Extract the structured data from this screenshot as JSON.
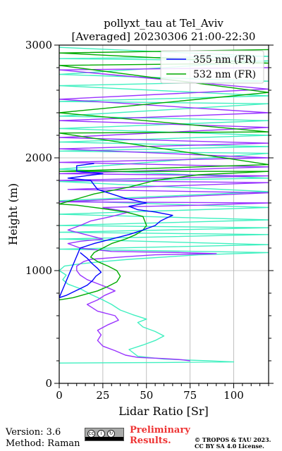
{
  "chart_data": {
    "type": "line",
    "title": "pollyxt_tau at Tel_Aviv",
    "subtitle": "[Averaged] 20230306 21:00-22:30",
    "xlabel": "Lidar Ratio [Sr]",
    "ylabel": "Height (m)",
    "xlim": [
      0,
      120
    ],
    "ylim": [
      0,
      3000
    ],
    "x_ticks": [
      0,
      25,
      50,
      75,
      100
    ],
    "y_ticks": [
      0,
      1000,
      2000,
      3000
    ],
    "grid": true,
    "legend_position": "top-right",
    "series": [
      {
        "name": "355 nm (FR)",
        "color": "#0000ff",
        "points": [
          [
            12,
            1160
          ],
          [
            16,
            1110
          ],
          [
            19,
            1060
          ],
          [
            22,
            1020
          ],
          [
            24,
            985
          ],
          [
            21,
            950
          ],
          [
            19,
            910
          ],
          [
            16,
            870
          ],
          [
            12,
            840
          ],
          [
            8,
            810
          ],
          [
            4,
            780
          ],
          [
            0,
            760
          ],
          [
            12,
            1200
          ],
          [
            20,
            1240
          ],
          [
            30,
            1280
          ],
          [
            40,
            1320
          ],
          [
            48,
            1360
          ],
          [
            55,
            1400
          ],
          [
            58,
            1440
          ],
          [
            62,
            1470
          ],
          [
            65,
            1490
          ],
          [
            55,
            1520
          ],
          [
            45,
            1540
          ],
          [
            40,
            1570
          ],
          [
            50,
            1600
          ],
          [
            38,
            1640
          ],
          [
            30,
            1680
          ],
          [
            22,
            1720
          ],
          [
            20,
            1760
          ],
          [
            18,
            1800
          ],
          [
            5,
            1820
          ],
          [
            25,
            1860
          ],
          [
            10,
            1880
          ],
          [
            10,
            1930
          ],
          [
            20,
            1950
          ]
        ]
      },
      {
        "name": "532 nm (FR)",
        "color": "#00aa00",
        "points": [
          [
            0,
            740
          ],
          [
            8,
            760
          ],
          [
            15,
            790
          ],
          [
            22,
            820
          ],
          [
            28,
            860
          ],
          [
            33,
            900
          ],
          [
            35,
            950
          ],
          [
            33,
            1000
          ],
          [
            28,
            1040
          ],
          [
            22,
            1080
          ],
          [
            18,
            1120
          ],
          [
            20,
            1160
          ],
          [
            25,
            1200
          ],
          [
            30,
            1240
          ],
          [
            38,
            1280
          ],
          [
            44,
            1320
          ],
          [
            48,
            1360
          ],
          [
            50,
            1400
          ],
          [
            49,
            1440
          ],
          [
            48,
            1480
          ],
          [
            38,
            1520
          ],
          [
            25,
            1550
          ],
          [
            10,
            1580
          ],
          [
            0,
            1590
          ],
          [
            20,
            1680
          ],
          [
            40,
            1740
          ],
          [
            55,
            1800
          ],
          [
            80,
            1850
          ],
          [
            120,
            1880
          ],
          [
            0,
            1880
          ],
          [
            120,
            1940
          ],
          [
            0,
            2220
          ],
          [
            120,
            2230
          ],
          [
            0,
            2400
          ],
          [
            120,
            2580
          ],
          [
            0,
            2820
          ],
          [
            120,
            2840
          ],
          [
            0,
            2930
          ],
          [
            120,
            2960
          ]
        ]
      },
      {
        "name": "",
        "color": "#9933ff",
        "points": [
          [
            75,
            200
          ],
          [
            70,
            210
          ],
          [
            60,
            220
          ],
          [
            45,
            230
          ],
          [
            38,
            250
          ],
          [
            32,
            290
          ],
          [
            25,
            330
          ],
          [
            22,
            380
          ],
          [
            24,
            430
          ],
          [
            22,
            470
          ],
          [
            28,
            520
          ],
          [
            34,
            560
          ],
          [
            32,
            600
          ],
          [
            22,
            640
          ],
          [
            16,
            700
          ],
          [
            22,
            740
          ],
          [
            26,
            780
          ],
          [
            32,
            820
          ],
          [
            26,
            860
          ],
          [
            16,
            920
          ],
          [
            12,
            960
          ],
          [
            10,
            1000
          ],
          [
            10,
            1040
          ],
          [
            14,
            1080
          ],
          [
            18,
            1100
          ],
          [
            35,
            1120
          ],
          [
            55,
            1140
          ],
          [
            90,
            1150
          ],
          [
            70,
            1160
          ],
          [
            30,
            1170
          ],
          [
            12,
            1200
          ],
          [
            5,
            1240
          ],
          [
            12,
            1260
          ],
          [
            25,
            1280
          ],
          [
            15,
            1320
          ],
          [
            5,
            1360
          ],
          [
            12,
            1400
          ],
          [
            18,
            1440
          ],
          [
            30,
            1480
          ],
          [
            40,
            1520
          ],
          [
            25,
            1560
          ],
          [
            50,
            1570
          ],
          [
            80,
            1580
          ],
          [
            100,
            1590
          ],
          [
            120,
            1600
          ],
          [
            0,
            1610
          ],
          [
            120,
            1690
          ],
          [
            5,
            1720
          ],
          [
            120,
            1780
          ],
          [
            0,
            1800
          ],
          [
            120,
            1840
          ],
          [
            0,
            1860
          ],
          [
            120,
            1920
          ],
          [
            0,
            1960
          ],
          [
            120,
            2000
          ],
          [
            0,
            2080
          ],
          [
            120,
            2130
          ],
          [
            0,
            2180
          ],
          [
            120,
            2270
          ],
          [
            0,
            2330
          ],
          [
            120,
            2400
          ],
          [
            0,
            2520
          ],
          [
            120,
            2610
          ],
          [
            0,
            2780
          ],
          [
            120,
            2800
          ]
        ]
      },
      {
        "name": "",
        "color": "#40f0c0",
        "points": [
          [
            0,
            180
          ],
          [
            60,
            185
          ],
          [
            100,
            190
          ],
          [
            85,
            200
          ],
          [
            60,
            215
          ],
          [
            45,
            240
          ],
          [
            40,
            300
          ],
          [
            48,
            340
          ],
          [
            55,
            380
          ],
          [
            60,
            420
          ],
          [
            55,
            460
          ],
          [
            48,
            500
          ],
          [
            45,
            540
          ],
          [
            50,
            570
          ],
          [
            42,
            610
          ],
          [
            35,
            650
          ],
          [
            30,
            700
          ],
          [
            25,
            740
          ],
          [
            18,
            790
          ],
          [
            12,
            840
          ],
          [
            5,
            880
          ],
          [
            2,
            920
          ],
          [
            4,
            960
          ],
          [
            0,
            1000
          ],
          [
            3,
            1040
          ],
          [
            12,
            1060
          ],
          [
            25,
            1080
          ],
          [
            40,
            1100
          ],
          [
            60,
            1120
          ],
          [
            80,
            1140
          ],
          [
            120,
            1160
          ],
          [
            0,
            1190
          ],
          [
            120,
            1230
          ],
          [
            0,
            1280
          ],
          [
            120,
            1320
          ],
          [
            0,
            1340
          ],
          [
            120,
            1380
          ],
          [
            0,
            1400
          ],
          [
            120,
            1450
          ],
          [
            0,
            1500
          ],
          [
            120,
            1560
          ],
          [
            0,
            1620
          ],
          [
            120,
            1700
          ],
          [
            0,
            1790
          ],
          [
            120,
            1820
          ],
          [
            0,
            1900
          ],
          [
            120,
            2040
          ],
          [
            0,
            2060
          ],
          [
            120,
            2100
          ],
          [
            0,
            2140
          ],
          [
            120,
            2200
          ],
          [
            0,
            2260
          ],
          [
            120,
            2330
          ],
          [
            0,
            2370
          ],
          [
            120,
            2480
          ],
          [
            0,
            2500
          ],
          [
            120,
            2550
          ],
          [
            0,
            2640
          ],
          [
            120,
            2680
          ],
          [
            0,
            2740
          ],
          [
            120,
            2860
          ],
          [
            0,
            2880
          ],
          [
            120,
            2900
          ],
          [
            0,
            2980
          ]
        ]
      }
    ]
  },
  "footer": {
    "version": "Version: 3.6",
    "method": "Method: Raman",
    "cc_badge_text": "BY  SA",
    "preliminary_line1": "Preliminary",
    "preliminary_line2": "Results.",
    "copyright_line1": "© TROPOS & TAU 2023.",
    "copyright_line2": "CC BY SA 4.0 License."
  }
}
